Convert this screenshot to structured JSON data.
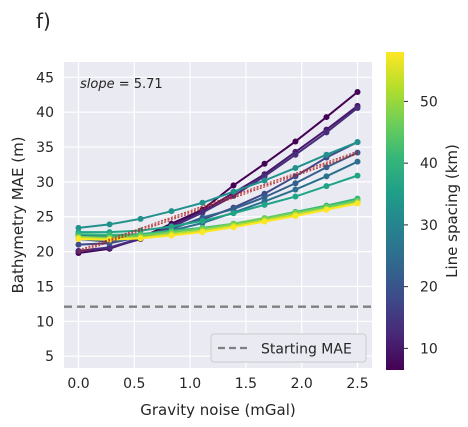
{
  "panel_label": "f)",
  "chart_data": {
    "type": "line",
    "xlabel": "Gravity noise (mGal)",
    "ylabel": "Bathymetry MAE (m)",
    "xlim": [
      -0.13,
      2.63
    ],
    "ylim": [
      3.3,
      47.2
    ],
    "xticks": [
      0.0,
      0.5,
      1.0,
      1.5,
      2.0,
      2.5
    ],
    "xtick_labels": [
      "0.0",
      "0.5",
      "1.0",
      "1.5",
      "2.0",
      "2.5"
    ],
    "yticks": [
      5,
      10,
      15,
      20,
      25,
      30,
      35,
      40,
      45
    ],
    "ytick_labels": [
      "5",
      "10",
      "15",
      "20",
      "25",
      "30",
      "35",
      "40",
      "45"
    ],
    "grid": true,
    "background": "#eaeaf2",
    "x": [
      0.0,
      0.278,
      0.556,
      0.833,
      1.111,
      1.389,
      1.667,
      1.944,
      2.222,
      2.5
    ],
    "annotation": {
      "prefix": "slope",
      "text": " = 5.71"
    },
    "reference_line": {
      "name": "Starting MAE",
      "y": 12.1,
      "color": "#808080",
      "style": "dashed"
    },
    "legend": {
      "position": "lower-right",
      "entries": [
        "Starting MAE"
      ]
    },
    "colorbar": {
      "label": "Line spacing (km)",
      "range": [
        6.5,
        58
      ],
      "ticks": [
        10,
        20,
        30,
        40,
        50
      ],
      "tick_labels": [
        "10",
        "20",
        "30",
        "40",
        "50"
      ],
      "colormap": [
        "#440154",
        "#482878",
        "#3e4989",
        "#31688e",
        "#26828e",
        "#1f9e89",
        "#35b779",
        "#6ece58",
        "#b5de2b",
        "#fde725"
      ]
    },
    "series": [
      {
        "spacing": 7,
        "color": "#440154",
        "values": [
          19.8,
          20.4,
          22.0,
          24.0,
          26.0,
          29.5,
          32.6,
          35.8,
          39.3,
          42.9
        ]
      },
      {
        "spacing": 10,
        "color": "#48186a",
        "values": [
          20.0,
          20.5,
          21.8,
          23.8,
          25.8,
          28.4,
          31.1,
          34.3,
          37.5,
          40.9
        ]
      },
      {
        "spacing": 12,
        "color": "#472d7b",
        "values": [
          20.1,
          20.6,
          21.9,
          23.5,
          25.6,
          28.0,
          30.8,
          33.9,
          37.1,
          40.6
        ]
      },
      {
        "spacing": 15,
        "color": "#3e4a89",
        "values": [
          21.0,
          21.2,
          22.1,
          23.5,
          24.6,
          26.3,
          28.3,
          30.8,
          33.5,
          35.7
        ]
      },
      {
        "spacing": 18,
        "color": "#355f8d",
        "values": [
          21.8,
          21.4,
          22.0,
          23.2,
          24.9,
          26.1,
          27.8,
          29.8,
          32.1,
          34.2
        ]
      },
      {
        "spacing": 21,
        "color": "#2d708e",
        "values": [
          22.4,
          22.2,
          22.2,
          23.0,
          24.1,
          25.6,
          27.2,
          28.9,
          30.8,
          32.9
        ]
      },
      {
        "spacing": 30,
        "color": "#21918c",
        "values": [
          23.4,
          23.9,
          24.7,
          25.8,
          27.0,
          28.6,
          30.2,
          32.0,
          33.9,
          35.7
        ]
      },
      {
        "spacing": 35,
        "color": "#20a486",
        "values": [
          22.8,
          22.8,
          23.0,
          23.6,
          24.4,
          25.5,
          26.7,
          27.9,
          29.4,
          30.9
        ]
      },
      {
        "spacing": 41,
        "color": "#35b779",
        "values": [
          22.5,
          22.4,
          22.5,
          23.0,
          23.4,
          24.0,
          24.8,
          25.7,
          26.6,
          27.6
        ]
      },
      {
        "spacing": 47,
        "color": "#6ece58",
        "values": [
          22.1,
          22.0,
          22.3,
          22.8,
          23.3,
          24.0,
          24.8,
          25.6,
          26.4,
          27.3
        ]
      },
      {
        "spacing": 53,
        "color": "#b5de2b",
        "values": [
          22.0,
          21.8,
          22.0,
          22.5,
          23.0,
          23.7,
          24.5,
          25.3,
          26.1,
          27.0
        ]
      },
      {
        "spacing": 57,
        "color": "#fde725",
        "values": [
          21.8,
          21.7,
          21.9,
          22.3,
          22.8,
          23.5,
          24.3,
          25.1,
          26.0,
          26.9
        ]
      }
    ],
    "fit_lines": [
      {
        "color": "#b22222",
        "style": "dotted",
        "x": [
          0.0,
          2.5
        ],
        "values": [
          20.0,
          34.2
        ]
      },
      {
        "color": "#b22222",
        "style": "dotted",
        "x": [
          0.0,
          2.5
        ],
        "values": [
          19.8,
          34.0
        ]
      },
      {
        "color": "#b22222",
        "style": "dotted",
        "x": [
          0.0,
          2.5
        ],
        "values": [
          20.2,
          34.4
        ]
      }
    ]
  }
}
